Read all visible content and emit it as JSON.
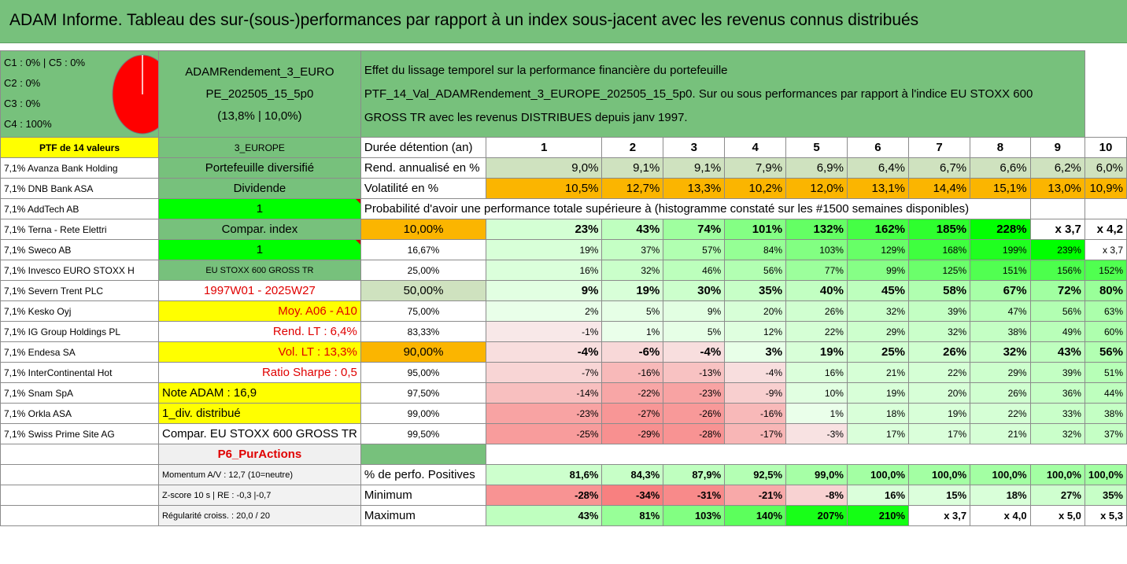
{
  "title": "ADAM Informe. Tableau des sur-(sous-)performances par rapport à un index sous-jacent avec les revenus connus distribués",
  "legend": {
    "lines": [
      "C1 : 0% | C5 : 0%",
      "C2 : 0%",
      "C3 : 0%",
      "C4 : 100%"
    ],
    "pie_color": "#ff0000"
  },
  "portfolio": {
    "name_line1": "ADAMRendement_3_EURO",
    "name_line2": "PE_202505_15_5p0",
    "name_line3": "(13,8% | 10,0%)"
  },
  "description": {
    "line1": "Effet du lissage temporel sur la performance financière du portefeuille",
    "line2": "PTF_14_Val_ADAMRendement_3_EUROPE_202505_15_5p0. Sur ou sous performances par rapport à l'indice EU STOXX 600",
    "line3": "GROSS TR avec les revenus DISTRIBUES depuis janv 1997."
  },
  "header_row": {
    "ptf": "PTF de 14 valeurs",
    "zone": "3_EUROPE",
    "label": "Durée détention (an)",
    "years": [
      "1",
      "2",
      "3",
      "4",
      "5",
      "6",
      "7",
      "8",
      "9",
      "10"
    ]
  },
  "holdings": [
    "7,1% Avanza Bank Holding",
    "7,1% DNB Bank ASA",
    "7,1% AddTech AB",
    "7,1% Terna - Rete Elettri",
    "7,1% Sweco AB",
    "7,1% Invesco EURO STOXX H",
    "7,1% Severn Trent PLC",
    "7,1% Kesko Oyj",
    "7,1% IG Group Holdings PL",
    "7,1% Endesa SA",
    "7,1% InterContinental Hot",
    "7,1% Snam SpA",
    "7,1% Orkla ASA",
    "7,1% Swiss Prime Site AG"
  ],
  "info_col": [
    "Portefeuille diversifié",
    "Dividende",
    "1",
    "Compar. index",
    "1",
    "EU STOXX 600 GROSS TR",
    "1997W01 - 2025W27",
    "Moy. A06 - A10",
    "Rend. LT : 6,4%",
    "Vol. LT : 13,3%",
    "Ratio Sharpe : 0,5",
    "Note ADAM : 16,9",
    "1_div. distribué",
    "Compar. EU STOXX 600 GROSS TR"
  ],
  "rend": {
    "label": "Rend. annualisé en %",
    "values": [
      "9,0%",
      "9,1%",
      "9,1%",
      "7,9%",
      "6,9%",
      "6,4%",
      "6,7%",
      "6,6%",
      "6,2%",
      "6,0%"
    ]
  },
  "vol": {
    "label": "Volatilité en %",
    "values": [
      "10,5%",
      "12,7%",
      "13,3%",
      "10,2%",
      "12,0%",
      "13,1%",
      "14,4%",
      "15,1%",
      "13,0%",
      "10,9%"
    ]
  },
  "prob_title": "Probabilité d'avoir une performance totale supérieure à (histogramme constaté sur les #1500 semaines disponibles)",
  "prob_rows": [
    {
      "p": "10,00%",
      "v": [
        "23%",
        "43%",
        "74%",
        "101%",
        "132%",
        "162%",
        "185%",
        "228%",
        "x 3,7",
        "x 4,2"
      ]
    },
    {
      "p": "16,67%",
      "v": [
        "19%",
        "37%",
        "57%",
        "84%",
        "103%",
        "129%",
        "168%",
        "199%",
        "239%",
        "x 3,7"
      ]
    },
    {
      "p": "25,00%",
      "v": [
        "16%",
        "32%",
        "46%",
        "56%",
        "77%",
        "99%",
        "125%",
        "151%",
        "156%",
        "152%"
      ]
    },
    {
      "p": "50,00%",
      "v": [
        "9%",
        "19%",
        "30%",
        "35%",
        "40%",
        "45%",
        "58%",
        "67%",
        "72%",
        "80%"
      ]
    },
    {
      "p": "75,00%",
      "v": [
        "2%",
        "5%",
        "9%",
        "20%",
        "26%",
        "32%",
        "39%",
        "47%",
        "56%",
        "63%"
      ]
    },
    {
      "p": "83,33%",
      "v": [
        "-1%",
        "1%",
        "5%",
        "12%",
        "22%",
        "29%",
        "32%",
        "38%",
        "49%",
        "60%"
      ]
    },
    {
      "p": "90,00%",
      "v": [
        "-4%",
        "-6%",
        "-4%",
        "3%",
        "19%",
        "25%",
        "26%",
        "32%",
        "43%",
        "56%"
      ]
    },
    {
      "p": "95,00%",
      "v": [
        "-7%",
        "-16%",
        "-13%",
        "-4%",
        "16%",
        "21%",
        "22%",
        "29%",
        "39%",
        "51%"
      ]
    },
    {
      "p": "97,50%",
      "v": [
        "-14%",
        "-22%",
        "-23%",
        "-9%",
        "10%",
        "19%",
        "20%",
        "26%",
        "36%",
        "44%"
      ]
    },
    {
      "p": "99,00%",
      "v": [
        "-23%",
        "-27%",
        "-26%",
        "-16%",
        "1%",
        "18%",
        "19%",
        "22%",
        "33%",
        "38%"
      ]
    },
    {
      "p": "99,50%",
      "v": [
        "-25%",
        "-29%",
        "-28%",
        "-17%",
        "-3%",
        "17%",
        "17%",
        "21%",
        "32%",
        "37%"
      ]
    }
  ],
  "p6": "P6_PurActions",
  "footer": [
    {
      "left": "Momentum A/V : 12,7 (10=neutre)",
      "label": "% de perfo. Positives",
      "v": [
        "81,6%",
        "84,3%",
        "87,9%",
        "92,5%",
        "99,0%",
        "100,0%",
        "100,0%",
        "100,0%",
        "100,0%",
        "100,0%"
      ]
    },
    {
      "left": "Z-score 10 s | RE : -0,3 |-0,7",
      "label": "Minimum",
      "v": [
        "-28%",
        "-34%",
        "-31%",
        "-21%",
        "-8%",
        "16%",
        "15%",
        "18%",
        "27%",
        "35%"
      ]
    },
    {
      "left": "Régularité croiss. : 20,0 / 20",
      "label": "Maximum",
      "v": [
        "43%",
        "81%",
        "103%",
        "140%",
        "207%",
        "210%",
        "x 3,7",
        "x 4,0",
        "x 5,0",
        "x 5,3"
      ]
    }
  ],
  "colors": {
    "green": "#77c17c",
    "yellow": "#ffff00",
    "orange": "#fbb500",
    "bright_green": "#00ff00",
    "red_text": "#e00000"
  }
}
